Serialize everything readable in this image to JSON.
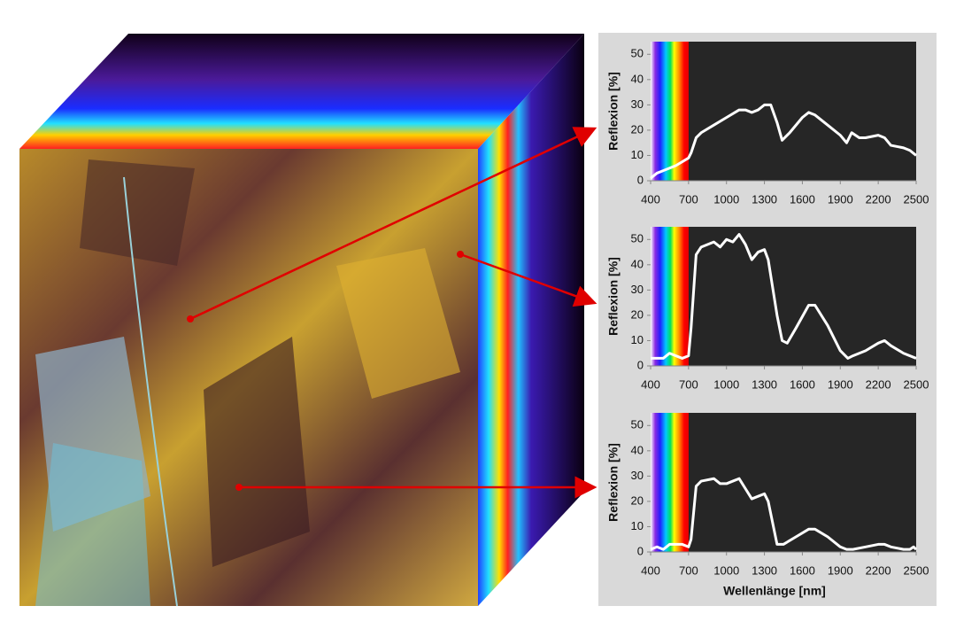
{
  "chart_data": [
    {
      "type": "line",
      "y_label": "Reflexion [%]",
      "x": [
        400,
        450,
        500,
        600,
        700,
        720,
        760,
        800,
        900,
        1000,
        1100,
        1150,
        1200,
        1250,
        1300,
        1350,
        1400,
        1440,
        1500,
        1600,
        1650,
        1700,
        1800,
        1900,
        1950,
        1990,
        2050,
        2100,
        2200,
        2250,
        2300,
        2400,
        2450,
        2500
      ],
      "values": [
        1,
        3,
        4,
        6,
        9,
        11,
        17,
        19,
        22,
        25,
        28,
        28,
        27,
        28,
        30,
        30,
        23,
        16,
        19,
        25,
        27,
        26,
        22,
        18,
        15,
        19,
        17,
        17,
        18,
        17,
        14,
        13,
        12,
        10
      ],
      "color": "#ffffff",
      "xlim": [
        400,
        2500
      ],
      "xticks": [
        400,
        700,
        1000,
        1300,
        1600,
        1900,
        2200,
        2500
      ],
      "ylim": [
        0,
        55
      ],
      "yticks": [
        0,
        10,
        20,
        30,
        40,
        50
      ]
    },
    {
      "type": "line",
      "y_label": "Reflexion [%]",
      "x": [
        400,
        500,
        550,
        650,
        700,
        720,
        760,
        800,
        900,
        950,
        1000,
        1050,
        1100,
        1150,
        1200,
        1250,
        1300,
        1330,
        1400,
        1440,
        1480,
        1550,
        1650,
        1700,
        1800,
        1900,
        1960,
        2000,
        2100,
        2200,
        2250,
        2300,
        2400,
        2500
      ],
      "values": [
        3,
        3,
        5,
        3,
        4,
        15,
        44,
        47,
        49,
        47,
        50,
        49,
        52,
        48,
        42,
        45,
        46,
        42,
        20,
        10,
        9,
        15,
        24,
        24,
        16,
        6,
        3,
        4,
        6,
        9,
        10,
        8,
        5,
        3
      ],
      "color": "#ffffff",
      "xlim": [
        400,
        2500
      ],
      "xticks": [
        400,
        700,
        1000,
        1300,
        1600,
        1900,
        2200,
        2500
      ],
      "ylim": [
        0,
        55
      ],
      "yticks": [
        0,
        10,
        20,
        30,
        40,
        50
      ]
    },
    {
      "type": "line",
      "y_label": "Reflexion [%]",
      "x_label": "Wellenlänge [nm]",
      "x": [
        400,
        450,
        500,
        550,
        650,
        700,
        720,
        760,
        800,
        900,
        950,
        1000,
        1050,
        1100,
        1150,
        1200,
        1250,
        1300,
        1330,
        1400,
        1450,
        1550,
        1650,
        1700,
        1800,
        1900,
        1950,
        2000,
        2100,
        2200,
        2250,
        2300,
        2400,
        2450,
        2480,
        2500
      ],
      "values": [
        1,
        2,
        1,
        3,
        3,
        2,
        5,
        26,
        28,
        29,
        27,
        27,
        28,
        29,
        25,
        21,
        22,
        23,
        20,
        3,
        3,
        6,
        9,
        9,
        6,
        2,
        1,
        1,
        2,
        3,
        3,
        2,
        1,
        1,
        2,
        1
      ],
      "color": "#ffffff",
      "xlim": [
        400,
        2500
      ],
      "xticks": [
        400,
        700,
        1000,
        1300,
        1600,
        1900,
        2200,
        2500
      ],
      "ylim": [
        0,
        55
      ],
      "yticks": [
        0,
        10,
        20,
        30,
        40,
        50
      ]
    }
  ]
}
